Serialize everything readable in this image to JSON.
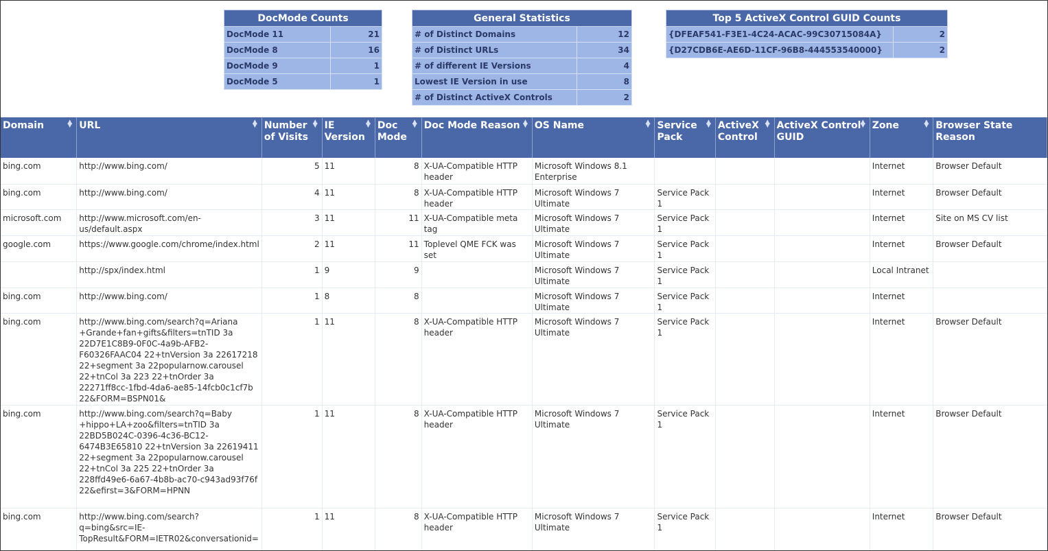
{
  "docmode_counts": {
    "title": "DocMode Counts",
    "rows": [
      [
        "DocMode 11",
        "21"
      ],
      [
        "DocMode 8",
        "16"
      ],
      [
        "DocMode 9",
        "1"
      ],
      [
        "DocMode 5",
        "1"
      ]
    ]
  },
  "general_stats": {
    "title": "General Statistics",
    "rows": [
      [
        "# of Distinct Domains",
        "12"
      ],
      [
        "# of Distinct URLs",
        "34"
      ],
      [
        "# of different IE Versions",
        "4"
      ],
      [
        "Lowest IE Version in use",
        "8"
      ],
      [
        "# of Distinct ActiveX Controls",
        "2"
      ]
    ]
  },
  "activex_guids": {
    "title": "Top 5 ActiveX Control GUID Counts",
    "rows": [
      [
        "{DFEAF541-F3E1-4C24-ACAC-99C30715084A}",
        "2"
      ],
      [
        "{D27CDB6E-AE6D-11CF-96B8-444553540000}",
        "2"
      ]
    ]
  },
  "colors": {
    "header": "#4a68a8",
    "summary_cell": "#9eb6e6"
  },
  "table": {
    "columns": [
      "Domain",
      "URL",
      "Number of Visits",
      "IE Version",
      "Doc Mode",
      "Doc Mode Reason",
      "OS Name",
      "Service Pack",
      "ActiveX Control",
      "ActiveX Control GUID",
      "Zone",
      "Browser State Reason"
    ],
    "rows": [
      [
        "bing.com",
        "http://www.bing.com/",
        "5",
        "11",
        "8",
        "X-UA-Compatible HTTP header",
        "Microsoft Windows 8.1 Enterprise",
        "",
        "",
        "",
        "Internet",
        "Browser Default"
      ],
      [
        "bing.com",
        "http://www.bing.com/",
        "4",
        "11",
        "8",
        "X-UA-Compatible HTTP header",
        "Microsoft Windows 7 Ultimate",
        "Service Pack 1",
        "",
        "",
        "Internet",
        "Browser Default"
      ],
      [
        "microsoft.com",
        "http://www.microsoft.com/en-us/default.aspx",
        "3",
        "11",
        "11",
        "X-UA-Compatible meta tag",
        "Microsoft Windows 7 Ultimate",
        "Service Pack 1",
        "",
        "",
        "Internet",
        "Site on MS CV list"
      ],
      [
        "google.com",
        "https://www.google.com/chrome/index.html",
        "2",
        "11",
        "11",
        "Toplevel QME FCK was set",
        "Microsoft Windows 7 Ultimate",
        "Service Pack 1",
        "",
        "",
        "Internet",
        "Browser Default"
      ],
      [
        "",
        "http://spx/index.html",
        "1",
        "9",
        "9",
        "",
        "Microsoft Windows 7 Ultimate",
        "Service Pack 1",
        "",
        "",
        "Local Intranet",
        ""
      ],
      [
        "bing.com",
        "http://www.bing.com/",
        "1",
        "8",
        "8",
        "",
        "Microsoft Windows 7 Ultimate",
        "Service Pack 1",
        "",
        "",
        "Internet",
        ""
      ],
      [
        "bing.com",
        "http://www.bing.com/search?q=Ariana +Grande+fan+gifts&filters=tnTID 3a 22D7E1C8B9-0F0C-4a9b-AFB2-F60326FAAC04 22+tnVersion 3a 22617218 22+segment 3a 22popularnow.carousel 22+tnCol 3a 223 22+tnOrder 3a 22271ff8cc-1fbd-4da6-ae85-14fcb0c1cf7b 22&FORM=BSPN01&",
        "1",
        "11",
        "8",
        "X-UA-Compatible HTTP header",
        "Microsoft Windows 7 Ultimate",
        "Service Pack 1",
        "",
        "",
        "Internet",
        "Browser Default"
      ],
      [
        "bing.com",
        "http://www.bing.com/search?q=Baby +hippo+LA+zoo&filters=tnTID 3a 22BD5B024C-0396-4c36-BC12-6474B3E65810 22+tnVersion 3a 22619411 22+segment 3a 22popularnow.carousel 22+tnCol 3a 225 22+tnOrder 3a 228ffd49e6-6a67-4b8b-ac70-c943ad93f76f 22&efirst=3&FORM=HPNN",
        "1",
        "11",
        "8",
        "X-UA-Compatible HTTP header",
        "Microsoft Windows 7 Ultimate",
        "Service Pack 1",
        "",
        "",
        "Internet",
        "Browser Default"
      ],
      [
        "bing.com",
        "http://www.bing.com/search? q=bing&src=IE-TopResult&FORM=IETR02&conversationid=",
        "1",
        "11",
        "8",
        "X-UA-Compatible HTTP header",
        "Microsoft Windows 7 Ultimate",
        "Service Pack 1",
        "",
        "",
        "Internet",
        "Browser Default"
      ]
    ]
  }
}
